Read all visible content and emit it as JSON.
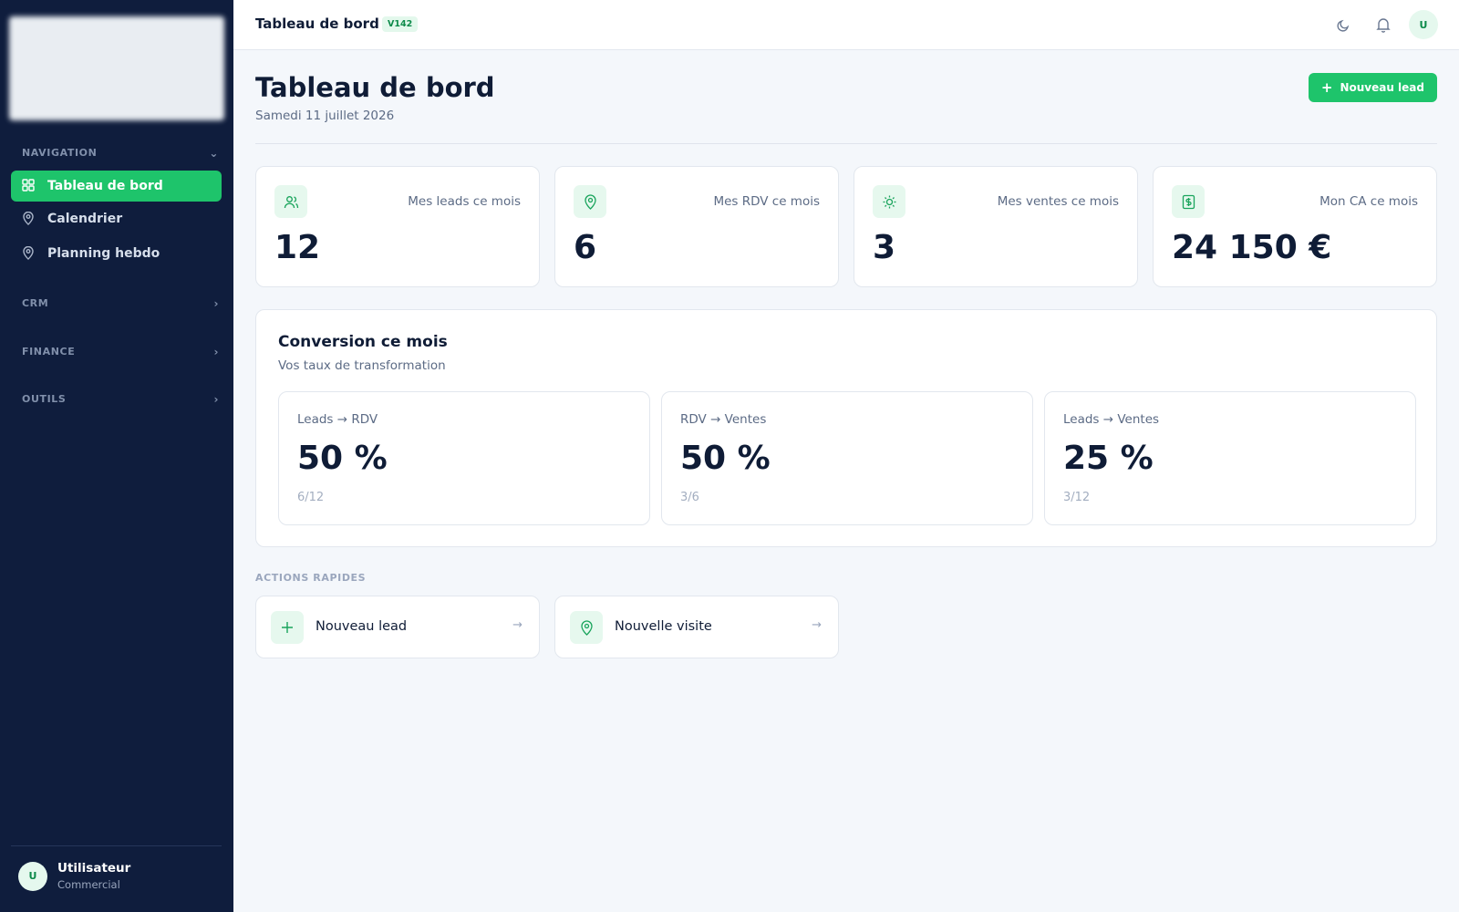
{
  "sidebar": {
    "sections": [
      {
        "title": "NAVIGATION",
        "items": [
          "Tableau de bord",
          "Calendrier",
          "Planning hebdo"
        ]
      },
      {
        "title": "CRM"
      },
      {
        "title": "FINANCE"
      },
      {
        "title": "OUTILS"
      }
    ],
    "user": {
      "avatar": "U",
      "name": "Utilisateur",
      "role": "Commercial"
    }
  },
  "header": {
    "title": "Tableau de bord",
    "version": "V142",
    "avatar": "U"
  },
  "page": {
    "title": "Tableau de bord",
    "date": "Samedi 11 juillet 2026",
    "button": "Nouveau lead"
  },
  "stats": [
    {
      "label": "Mes leads ce mois",
      "value": "12"
    },
    {
      "label": "Mes RDV ce mois",
      "value": "6"
    },
    {
      "label": "Mes ventes ce mois",
      "value": "3"
    },
    {
      "label": "Mon CA ce mois",
      "value": "24 150 €"
    }
  ],
  "conversion": {
    "title": "Conversion ce mois",
    "subtitle": "Vos taux de transformation",
    "cards": [
      {
        "label": "Leads → RDV",
        "value": "50 %",
        "detail": "6/12"
      },
      {
        "label": "RDV → Ventes",
        "value": "50 %",
        "detail": "3/6"
      },
      {
        "label": "Leads → Ventes",
        "value": "25 %",
        "detail": "3/12"
      }
    ]
  },
  "quick_actions": {
    "title": "ACTIONS RAPIDES",
    "items": [
      "Nouveau lead",
      "Nouvelle visite"
    ]
  }
}
